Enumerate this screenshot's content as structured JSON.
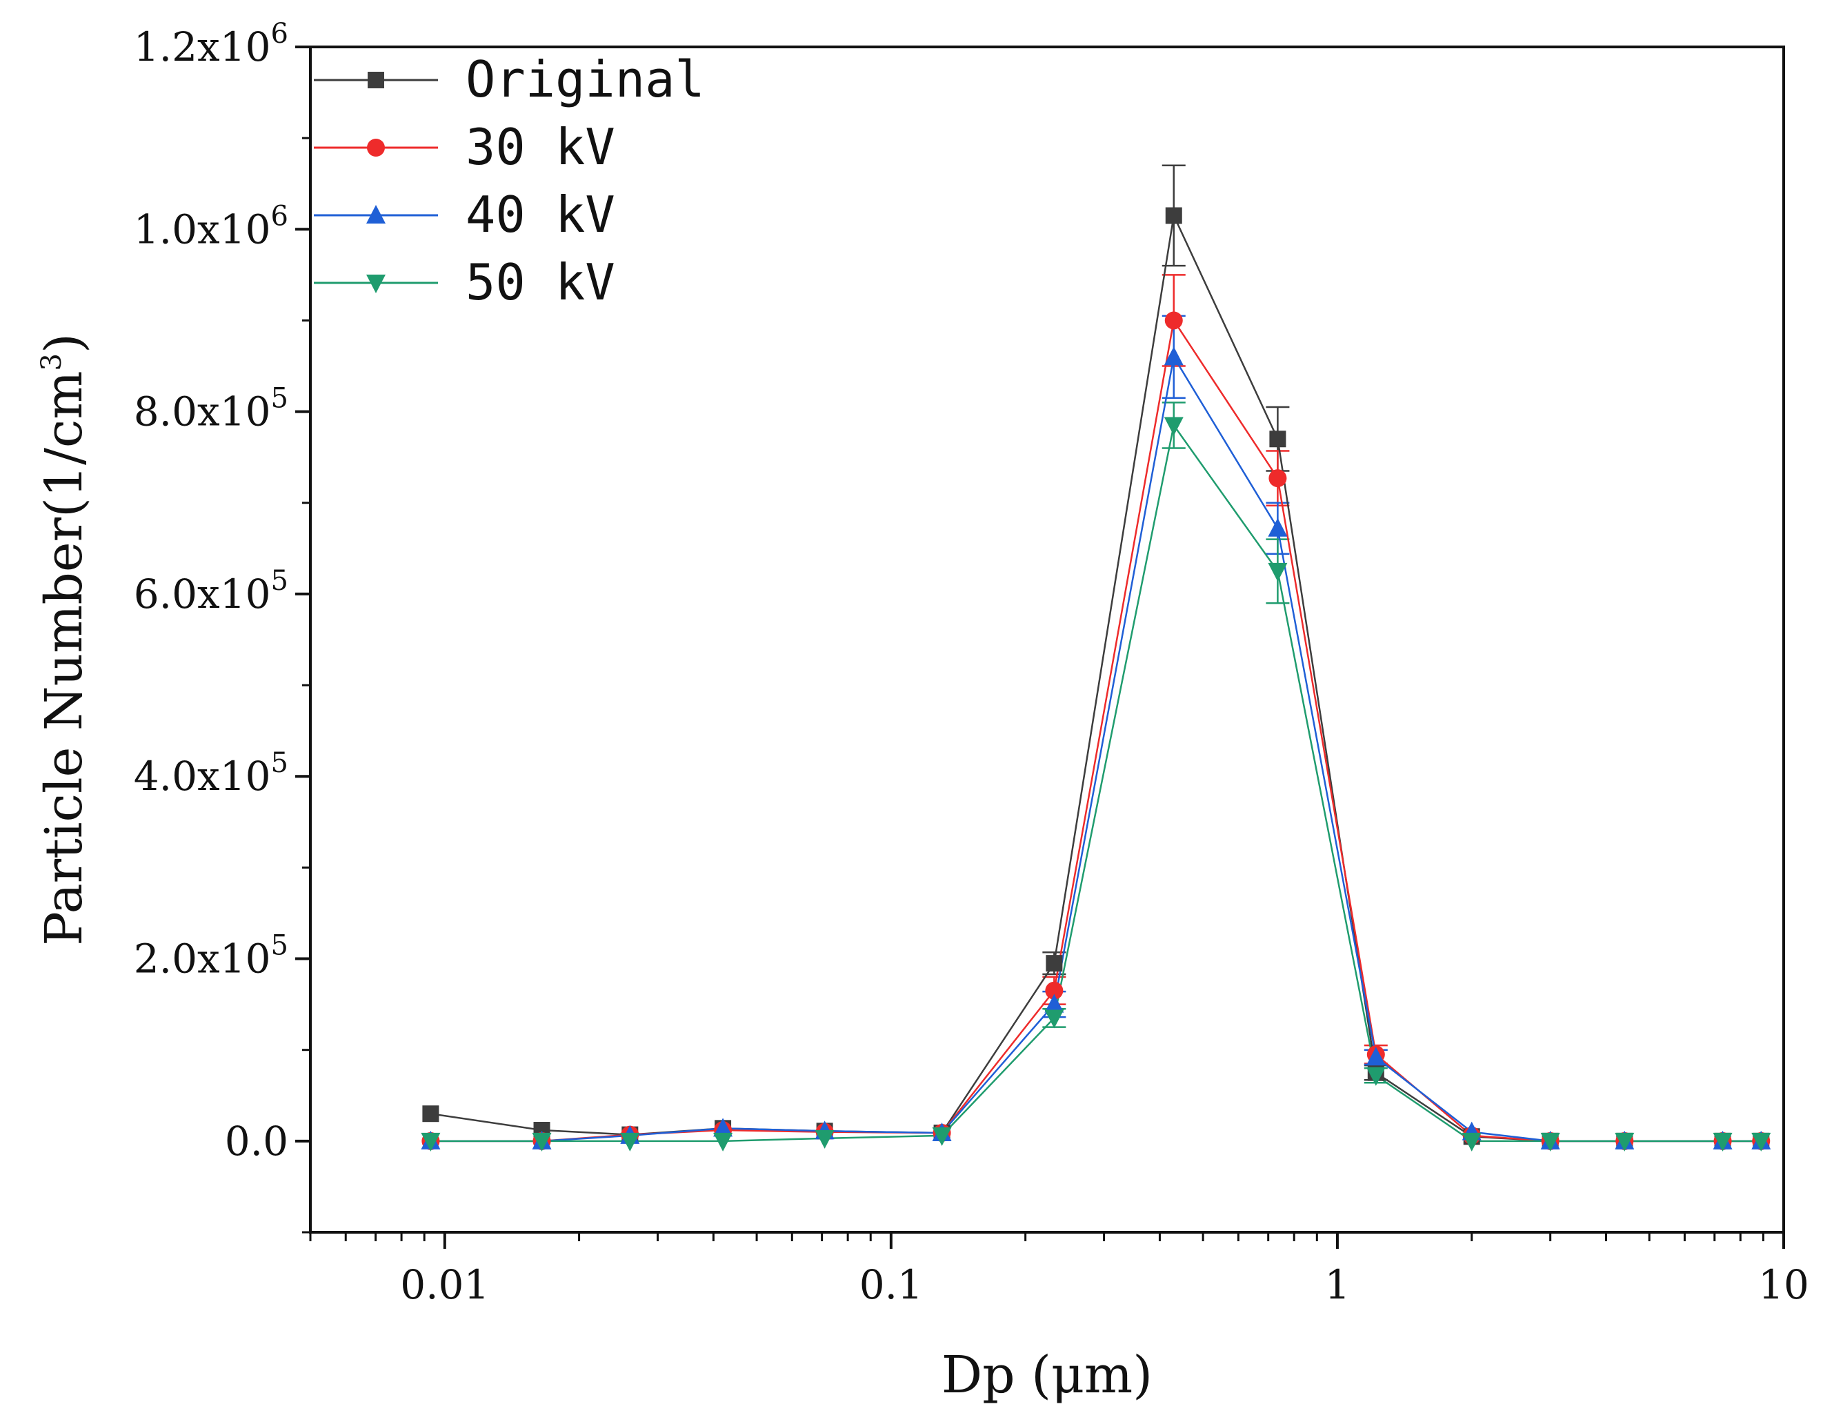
{
  "chart_data": {
    "type": "line",
    "title": "",
    "xlabel": "Dp (μm)",
    "ylabel_main": "Particle Number(1/cm",
    "ylabel_exp": "3",
    "ylabel_close": ")",
    "xscale": "log",
    "xlim": [
      0.005,
      10
    ],
    "ylim": [
      -100000,
      1200000
    ],
    "x_ticks": [
      {
        "value": 0.01,
        "label": "0.01"
      },
      {
        "value": 0.1,
        "label": "0.1"
      },
      {
        "value": 1,
        "label": "1"
      },
      {
        "value": 10,
        "label": "10"
      }
    ],
    "y_ticks": [
      {
        "value": 0,
        "mant": "0.0",
        "exp": ""
      },
      {
        "value": 200000,
        "mant": "2.0x10",
        "exp": "5"
      },
      {
        "value": 400000,
        "mant": "4.0x10",
        "exp": "5"
      },
      {
        "value": 600000,
        "mant": "6.0x10",
        "exp": "5"
      },
      {
        "value": 800000,
        "mant": "8.0x10",
        "exp": "5"
      },
      {
        "value": 1000000,
        "mant": "1.0x10",
        "exp": "6"
      },
      {
        "value": 1200000,
        "mant": "1.2x10",
        "exp": "6"
      }
    ],
    "legend_position": "top-left",
    "x": [
      0.0093,
      0.0165,
      0.026,
      0.042,
      0.071,
      0.13,
      0.232,
      0.43,
      0.735,
      1.22,
      2.0,
      3.0,
      4.4,
      7.3,
      8.9
    ],
    "series": [
      {
        "name": "Original",
        "color": "#3d3d3d",
        "marker": "square",
        "values": [
          30000,
          12000,
          7000,
          14000,
          11000,
          9000,
          195000,
          1015000,
          770000,
          75000,
          5000,
          0,
          0,
          0,
          0
        ],
        "errors": [
          0,
          0,
          0,
          0,
          0,
          0,
          12000,
          55000,
          35000,
          8000,
          0,
          0,
          0,
          0,
          0
        ]
      },
      {
        "name": "30 kV",
        "color": "#ee2b2b",
        "marker": "circle",
        "values": [
          0,
          0,
          7000,
          12000,
          10000,
          9000,
          165000,
          900000,
          727000,
          95000,
          6000,
          0,
          0,
          0,
          0
        ],
        "errors": [
          0,
          0,
          0,
          0,
          0,
          0,
          15000,
          50000,
          30000,
          10000,
          0,
          0,
          0,
          0,
          0
        ]
      },
      {
        "name": "40 kV",
        "color": "#1f5fd6",
        "marker": "triangle-up",
        "values": [
          0,
          0,
          6000,
          14000,
          11000,
          9000,
          150000,
          860000,
          672000,
          92000,
          10000,
          0,
          0,
          0,
          0
        ],
        "errors": [
          0,
          0,
          0,
          0,
          0,
          0,
          14000,
          45000,
          28000,
          8000,
          0,
          0,
          0,
          0,
          0
        ]
      },
      {
        "name": "50 kV",
        "color": "#1f9c6e",
        "marker": "triangle-down",
        "values": [
          0,
          0,
          0,
          0,
          3000,
          6000,
          135000,
          785000,
          625000,
          72000,
          0,
          0,
          0,
          0,
          0
        ],
        "errors": [
          0,
          0,
          0,
          0,
          0,
          0,
          10000,
          25000,
          35000,
          8000,
          0,
          0,
          0,
          0,
          0
        ]
      }
    ]
  }
}
